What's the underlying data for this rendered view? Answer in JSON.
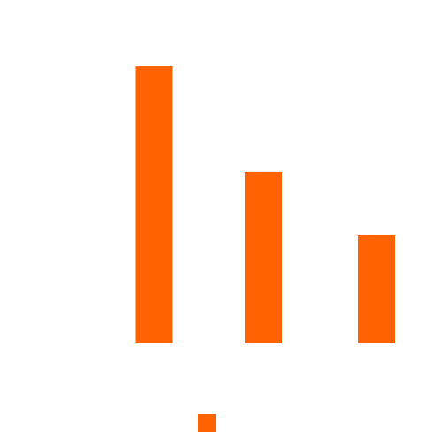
{
  "chart_data": {
    "type": "bar",
    "categories": [
      "",
      "",
      ""
    ],
    "series": [
      {
        "values": [
          100,
          62,
          39
        ]
      }
    ],
    "ylim": [
      0,
      100
    ],
    "grid": false,
    "legend": "bottom",
    "colors": {
      "bar": "#ff6200",
      "background": "#ffffff"
    }
  }
}
